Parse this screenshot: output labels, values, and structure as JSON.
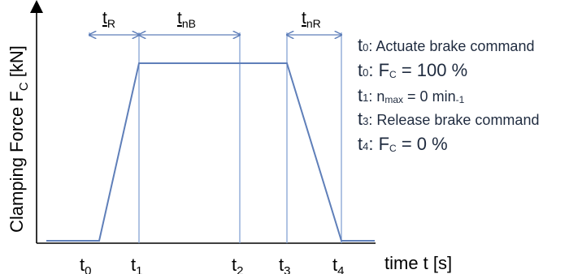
{
  "diagram": {
    "y_axis_label": {
      "prefix": "Clamping Force F",
      "subscript": "C",
      "suffix": " [kN]"
    },
    "x_axis_label": "time t [s]",
    "time_markers": [
      {
        "main": "t",
        "sub": "0"
      },
      {
        "main": "t",
        "sub": "1"
      },
      {
        "main": "t",
        "sub": "2"
      },
      {
        "main": "t",
        "sub": "3"
      },
      {
        "main": "t",
        "sub": "4"
      }
    ],
    "interval_labels": [
      {
        "main": "t",
        "sub": "R"
      },
      {
        "main": "t",
        "sub": "nB"
      },
      {
        "main": "t",
        "sub": "nR"
      }
    ],
    "colors": {
      "curve": "#5f7fb9",
      "guides": "#7c9bd0",
      "text": "#1f2b3f",
      "axis": "#000000"
    }
  },
  "legend": {
    "items": [
      {
        "t_sub": "0",
        "text": ": Actuate brake command"
      },
      {
        "t_sub": "0",
        "text": ": F",
        "sub2": "C",
        "text2": " = 100 %"
      },
      {
        "t_sub": "1",
        "text": ": n",
        "sub2": "max",
        "text2": " = 0 min",
        "sub3": "-1"
      },
      {
        "t_sub": "3",
        "text": ": Release brake command"
      },
      {
        "t_sub": "4",
        "text": ": F",
        "sub2": "C",
        "text2": " = 0 %"
      }
    ]
  }
}
